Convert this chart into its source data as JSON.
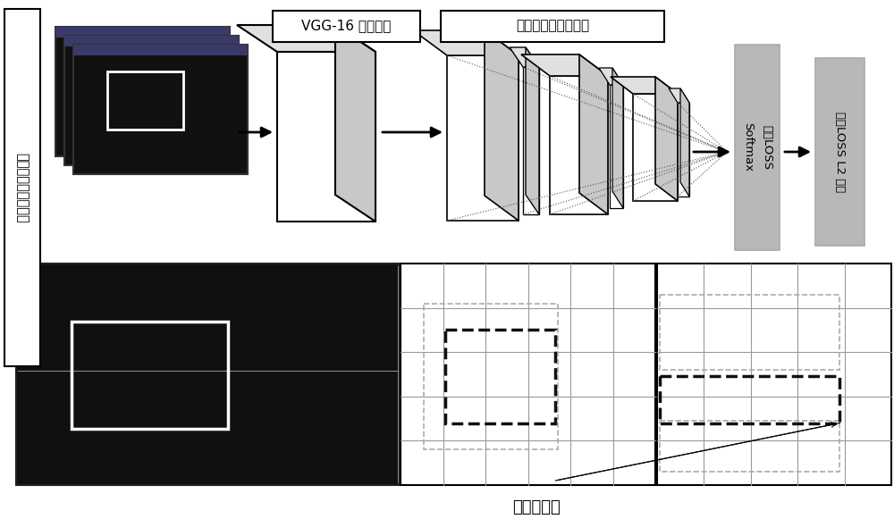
{
  "title": "定位和分类",
  "label_left": "自动检测模块流程图",
  "label_vgg": "VGG-16 特征映射",
  "label_multi": "增加三层多尺度卷积",
  "label_cls": "分类LOSS\nSoftmax",
  "label_det": "检测LOSS L2 范数",
  "bg_color": "#ffffff",
  "grid_color": "#999999",
  "dashed_dark": "#111111",
  "dashed_gray": "#aaaaaa",
  "arrow_color": "#333333",
  "box_gray": "#aaaaaa",
  "box_gray_fill": "#b8b8b8"
}
